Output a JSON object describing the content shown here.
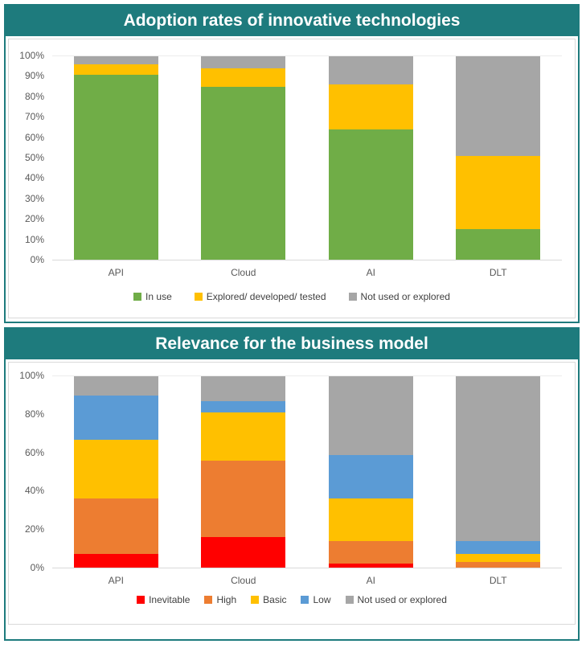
{
  "accent_color": "#1E7B7D",
  "panels": [
    {
      "title": "Adoption rates of innovative technologies"
    },
    {
      "title": "Relevance for the business model"
    }
  ],
  "chart_data": [
    {
      "type": "bar",
      "stacked": true,
      "title": "Adoption rates of innovative technologies",
      "categories": [
        "API",
        "Cloud",
        "AI",
        "DLT"
      ],
      "series": [
        {
          "name": "In use",
          "color": "#70AD47",
          "values": [
            91,
            85,
            64,
            15
          ]
        },
        {
          "name": "Explored/ developed/ tested",
          "color": "#FFC000",
          "values": [
            5,
            9,
            22,
            36
          ]
        },
        {
          "name": "Not used or explored",
          "color": "#A6A6A6",
          "values": [
            4,
            6,
            14,
            49
          ]
        }
      ],
      "y_ticks": [
        "0%",
        "10%",
        "20%",
        "30%",
        "40%",
        "50%",
        "60%",
        "70%",
        "80%",
        "90%",
        "100%"
      ],
      "ylim": [
        0,
        100
      ],
      "grid": false,
      "legend_position": "bottom"
    },
    {
      "type": "bar",
      "stacked": true,
      "title": "Relevance for the business model",
      "categories": [
        "API",
        "Cloud",
        "AI",
        "DLT"
      ],
      "series": [
        {
          "name": "Inevitable",
          "color": "#FF0000",
          "values": [
            7,
            16,
            2,
            0
          ]
        },
        {
          "name": "High",
          "color": "#ED7D31",
          "values": [
            29,
            40,
            12,
            3
          ]
        },
        {
          "name": "Basic",
          "color": "#FFC000",
          "values": [
            31,
            25,
            22,
            4
          ]
        },
        {
          "name": "Low",
          "color": "#5B9BD5",
          "values": [
            23,
            6,
            23,
            7
          ]
        },
        {
          "name": "Not used or explored",
          "color": "#A6A6A6",
          "values": [
            10,
            13,
            41,
            86
          ]
        }
      ],
      "y_ticks": [
        "0%",
        "20%",
        "40%",
        "60%",
        "80%",
        "100%"
      ],
      "ylim": [
        0,
        100
      ],
      "grid": false,
      "legend_position": "bottom"
    }
  ]
}
